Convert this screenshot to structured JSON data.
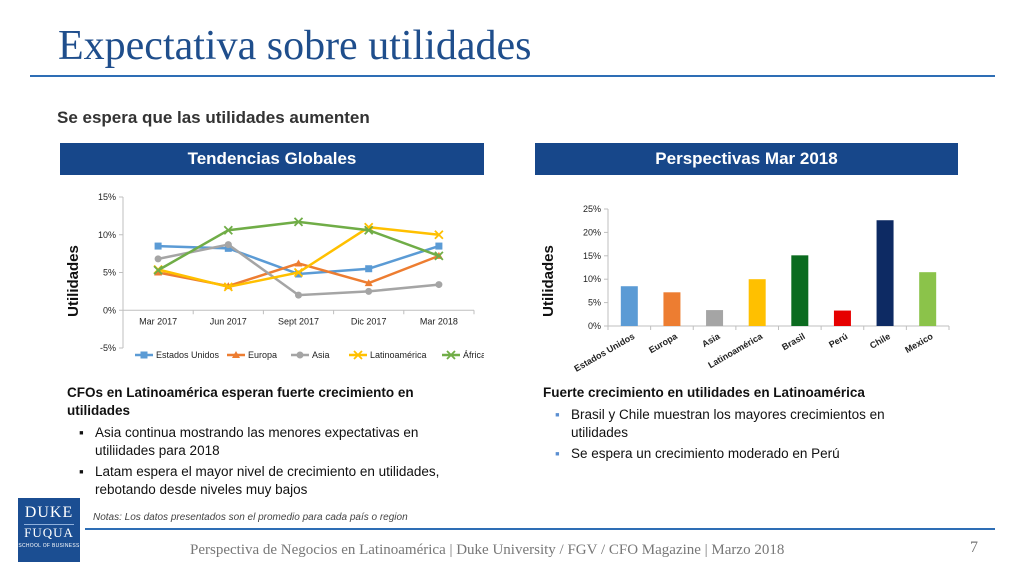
{
  "slide": {
    "title": "Expectativa sobre utilidades",
    "subtitle": "Se espera que las utilidades aumenten",
    "left_band": "Tendencias Globales",
    "right_band": "Perspectivas Mar 2018",
    "notes": "Notas:  Los datos presentados son el promedio para cada país o region",
    "footer": "Perspectiva de Negocios en Latinoamérica | Duke University / FGV / CFO Magazine | Marzo 2018",
    "page_number": "7"
  },
  "logo": {
    "line1": "DUKE",
    "line2": "FUQUA",
    "line3": "SCHOOL OF BUSINESS"
  },
  "left_text": {
    "heading": "CFOs en Latinoamérica esperan fuerte crecimiento en utilidades",
    "bullets": [
      "Asia continua mostrando las menores expectativas en utiliidades para 2018",
      "Latam espera el mayor nivel de crecimiento en utilidades, rebotando desde niveles muy bajos"
    ]
  },
  "right_text": {
    "heading": "Fuerte crecimiento en utilidades en Latinoamérica",
    "bullets": [
      "Brasil y Chile muestran los mayores crecimientos en utilidades",
      "Se espera un crecimiento moderado en Perú"
    ]
  },
  "chart_data": [
    {
      "type": "line",
      "ylabel": "Utilidades",
      "categories": [
        "Mar 2017",
        "Jun 2017",
        "Sept 2017",
        "Dic 2017",
        "Mar 2018"
      ],
      "ylim": [
        -5,
        15
      ],
      "yticks": [
        "15%",
        "10%",
        "5%",
        "0%",
        "-5%"
      ],
      "ytick_values": [
        15,
        10,
        5,
        0,
        -5
      ],
      "legend": "bottom",
      "series": [
        {
          "name": "Estados Unidos",
          "color": "#5b9bd5",
          "marker": "square",
          "values": [
            8.5,
            8.2,
            4.8,
            5.5,
            8.5
          ]
        },
        {
          "name": "Europa",
          "color": "#ed7d31",
          "marker": "triangle",
          "values": [
            5.0,
            3.2,
            6.2,
            3.6,
            7.2
          ]
        },
        {
          "name": "Asia",
          "color": "#a5a5a5",
          "marker": "circle",
          "values": [
            6.8,
            8.7,
            2.0,
            2.5,
            3.4
          ]
        },
        {
          "name": "Latinoamérica",
          "color": "#ffc000",
          "marker": "x",
          "values": [
            5.4,
            3.1,
            5.0,
            11.0,
            10.0
          ]
        },
        {
          "name": "África",
          "color": "#70ad47",
          "marker": "x",
          "values": [
            5.3,
            10.6,
            11.7,
            10.6,
            7.2
          ]
        }
      ]
    },
    {
      "type": "bar",
      "ylabel": "Utilidades",
      "ylim": [
        0,
        25
      ],
      "yticks": [
        "25%",
        "20%",
        "15%",
        "10%",
        "5%",
        "0%"
      ],
      "ytick_values": [
        25,
        20,
        15,
        10,
        5,
        0
      ],
      "categories": [
        "Estados Unidos",
        "Europa",
        "Asia",
        "Latinoamérica",
        "Brasil",
        "Perú",
        "Chile",
        "Mexico"
      ],
      "values": [
        8.5,
        7.2,
        3.4,
        10.0,
        15.1,
        3.3,
        22.6,
        11.5
      ],
      "colors": [
        "#5b9bd5",
        "#ed7d31",
        "#a5a5a5",
        "#ffc000",
        "#0b6b1f",
        "#e60000",
        "#0d2a63",
        "#8bc34a"
      ]
    }
  ]
}
